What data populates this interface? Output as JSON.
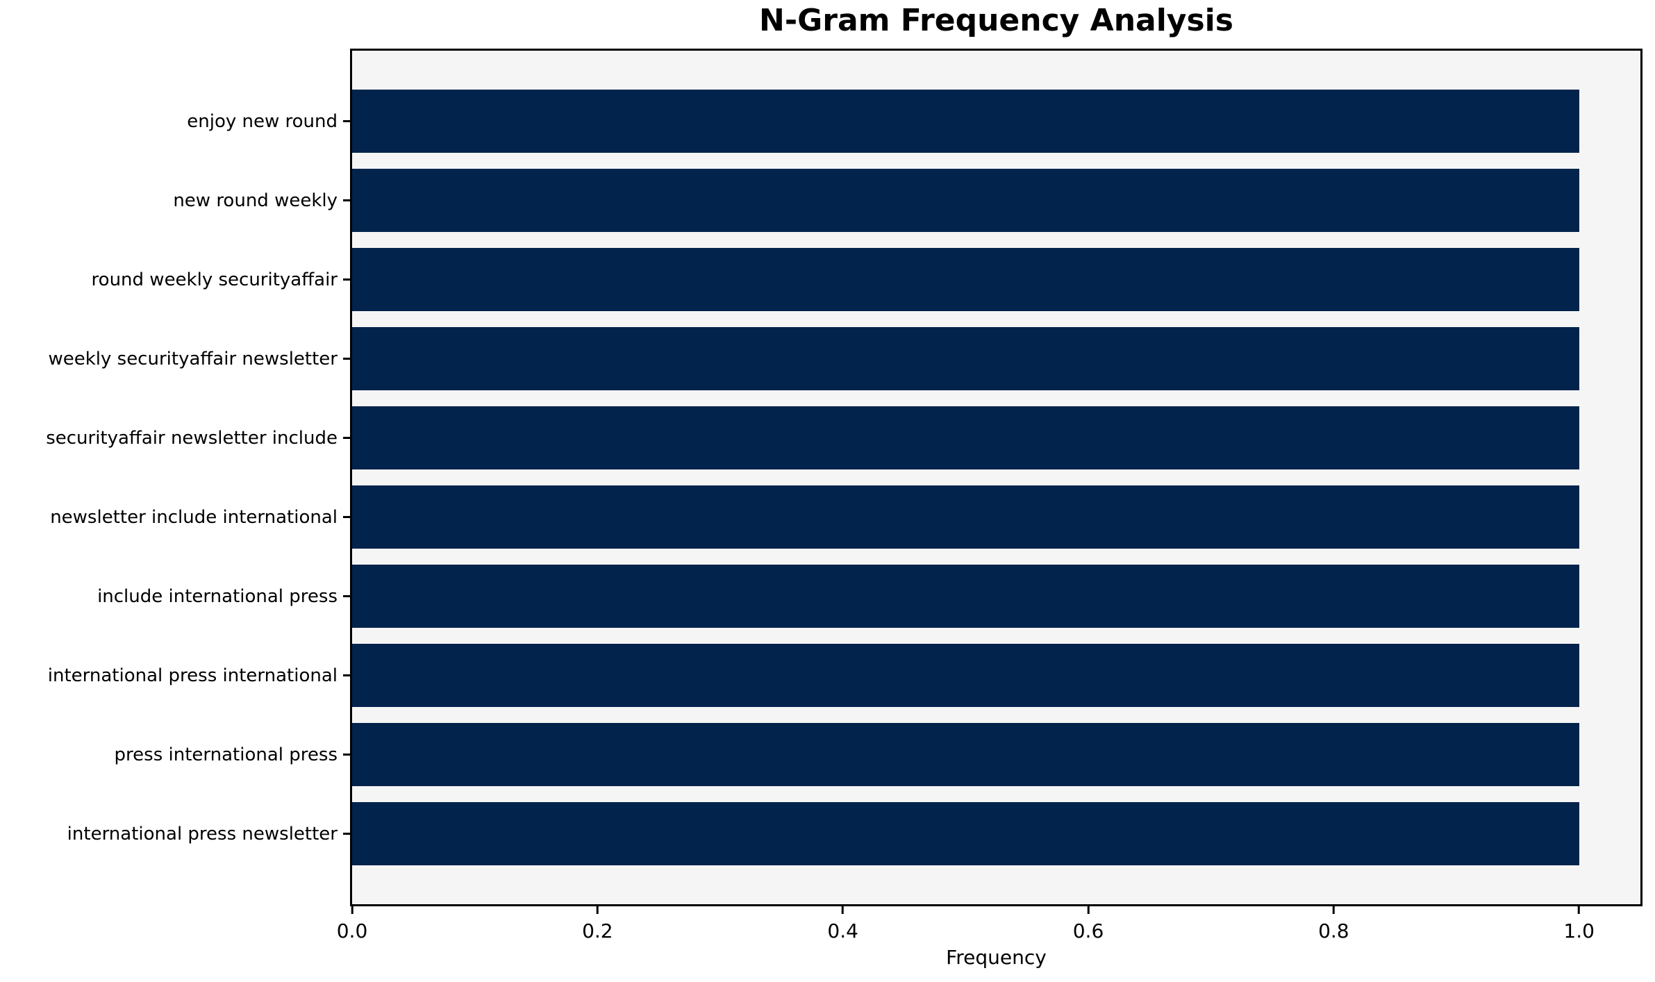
{
  "title": "N-Gram Frequency Analysis",
  "chart_data": {
    "type": "bar",
    "orientation": "horizontal",
    "title": "N-Gram Frequency Analysis",
    "xlabel": "Frequency",
    "ylabel": "",
    "categories": [
      "enjoy new round",
      "new round weekly",
      "round weekly securityaffair",
      "weekly securityaffair newsletter",
      "securityaffair newsletter include",
      "newsletter include international",
      "include international press",
      "international press international",
      "press international press",
      "international press newsletter"
    ],
    "values": [
      1.0,
      1.0,
      1.0,
      1.0,
      1.0,
      1.0,
      1.0,
      1.0,
      1.0,
      1.0
    ],
    "xlim": [
      0,
      1.05
    ],
    "xticks": [
      "0.0",
      "0.2",
      "0.4",
      "0.6",
      "0.8",
      "1.0"
    ],
    "xtick_values": [
      0.0,
      0.2,
      0.4,
      0.6,
      0.8,
      1.0
    ],
    "grid": false,
    "legend": false,
    "bar_color": "#02234c",
    "plot_bg": "#f5f5f5",
    "figure_bg": "#ffffff",
    "axis_color": "#000000"
  }
}
